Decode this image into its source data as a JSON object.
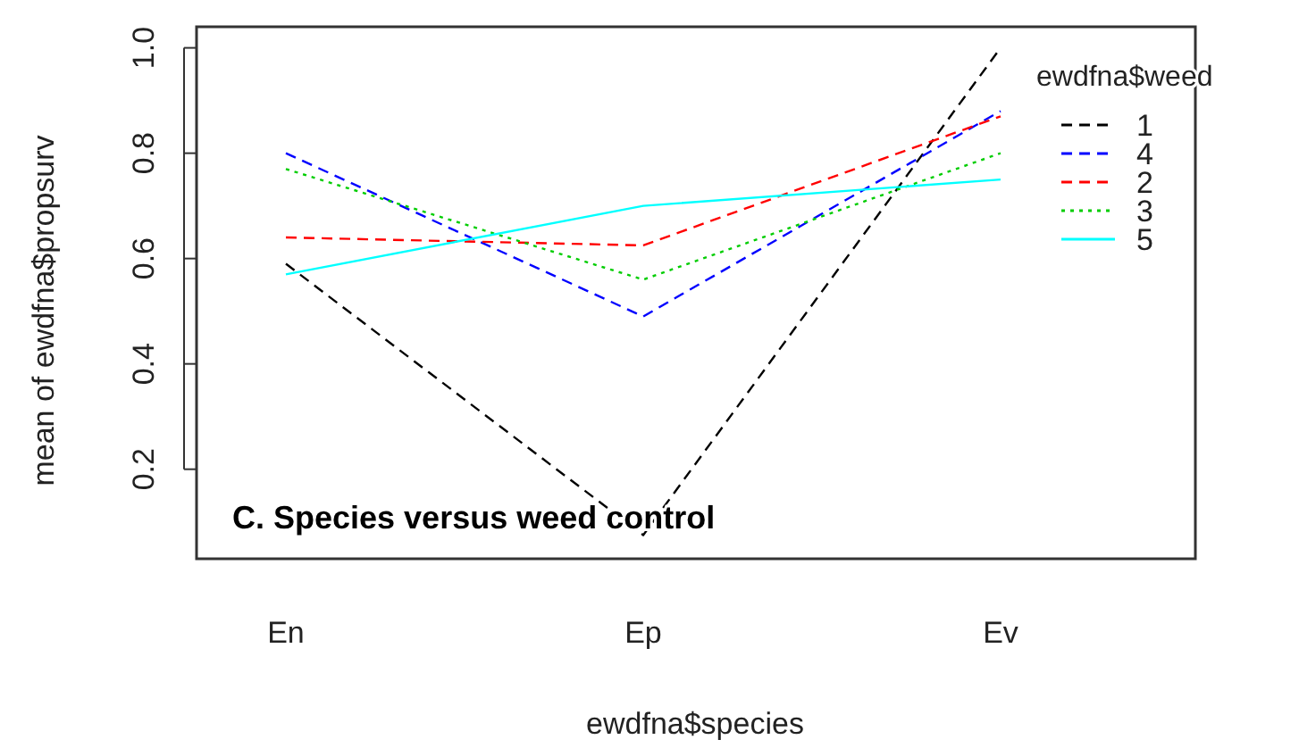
{
  "chart_data": {
    "type": "line",
    "title": null,
    "xlabel": "ewdfna$species",
    "ylabel": "mean of  ewdfna$propsurv",
    "legend_title": "ewdfna$weed",
    "categories": [
      "En",
      "Ep",
      "Ev"
    ],
    "series": [
      {
        "name": "1",
        "color": "#000000",
        "line_style": "dashed",
        "values": [
          0.59,
          0.075,
          1.0
        ]
      },
      {
        "name": "4",
        "color": "#0000ff",
        "line_style": "dashed",
        "values": [
          0.8,
          0.49,
          0.88
        ]
      },
      {
        "name": "2",
        "color": "#ff0000",
        "line_style": "dashed",
        "values": [
          0.64,
          0.625,
          0.87
        ]
      },
      {
        "name": "3",
        "color": "#00cd00",
        "line_style": "dotted",
        "values": [
          0.77,
          0.56,
          0.8
        ]
      },
      {
        "name": "5",
        "color": "#00ffff",
        "line_style": "solid",
        "values": [
          0.57,
          0.7,
          0.75
        ]
      }
    ],
    "ylim": [
      0.03,
      1.04
    ],
    "yticks": [
      0.2,
      0.4,
      0.6,
      0.8,
      {
        "value": 1,
        "label": "1.0"
      }
    ],
    "annotations": [
      "C. Species versus weed control"
    ],
    "legend": "top right",
    "grid": false,
    "marker": "none"
  }
}
